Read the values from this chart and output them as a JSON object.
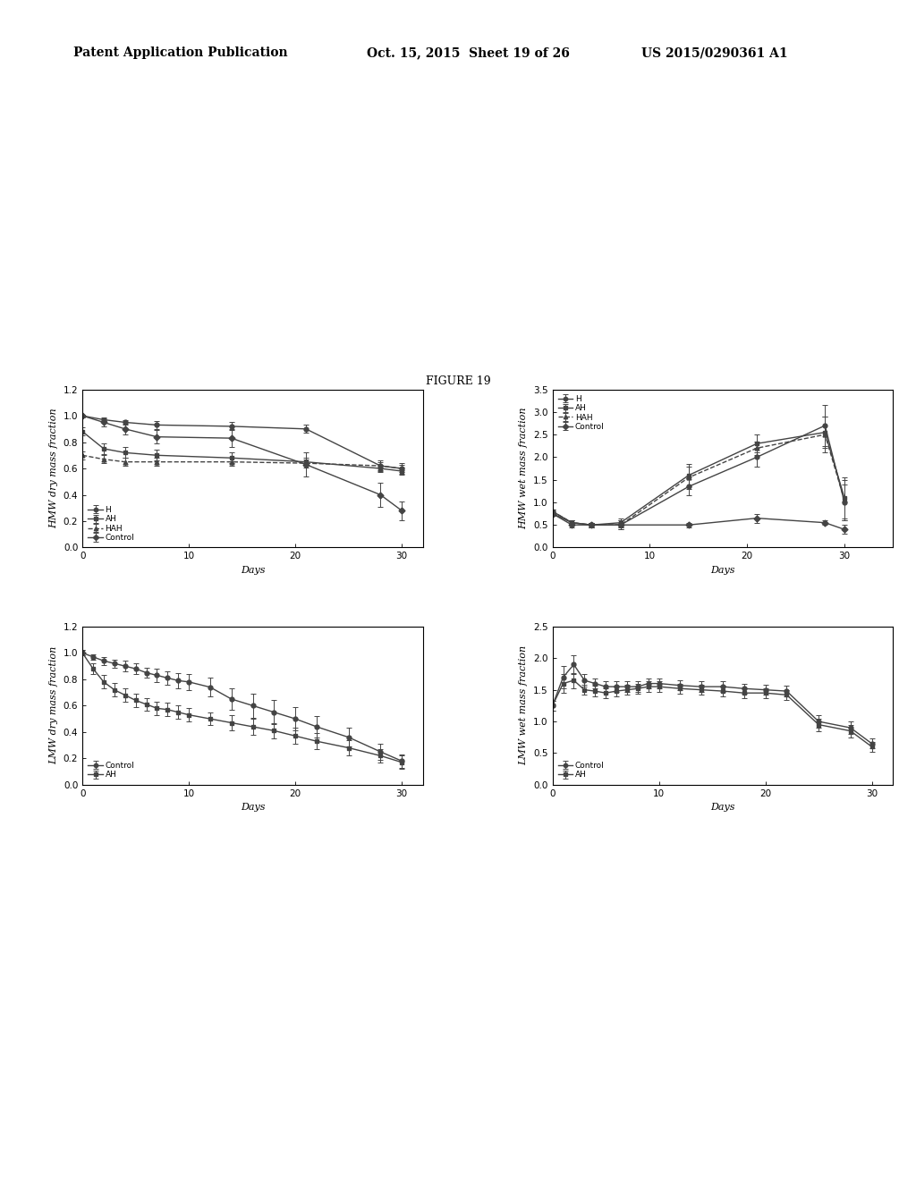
{
  "figure_title": "FIGURE 19",
  "header_line1": "Patent Application Publication",
  "header_line2": "Oct. 15, 2015  Sheet 19 of 26",
  "header_line3": "US 2015/0290361 A1",
  "background_color": "#ffffff",
  "top_left": {
    "ylabel": "HMW dry mass fraction",
    "xlabel": "Days",
    "xlim": [
      0,
      32
    ],
    "ylim": [
      0,
      1.2
    ],
    "yticks": [
      0,
      0.2,
      0.4,
      0.6,
      0.8,
      1.0,
      1.2
    ],
    "xticks": [
      0,
      10,
      20,
      30
    ],
    "legend_loc": "lower left",
    "series": [
      {
        "label": "H",
        "marker": "o",
        "linestyle": "-",
        "x": [
          0,
          2,
          4,
          7,
          14,
          21,
          28,
          30
        ],
        "y": [
          1.0,
          0.97,
          0.95,
          0.93,
          0.92,
          0.9,
          0.62,
          0.6
        ],
        "yerr": [
          0.01,
          0.02,
          0.02,
          0.03,
          0.03,
          0.03,
          0.04,
          0.04
        ]
      },
      {
        "label": "AH",
        "marker": "s",
        "linestyle": "-",
        "x": [
          0,
          2,
          4,
          7,
          14,
          21,
          28,
          30
        ],
        "y": [
          0.88,
          0.75,
          0.72,
          0.7,
          0.68,
          0.65,
          0.6,
          0.58
        ],
        "yerr": [
          0.03,
          0.04,
          0.04,
          0.04,
          0.04,
          0.03,
          0.03,
          0.03
        ]
      },
      {
        "label": "HAH",
        "marker": "^",
        "linestyle": "--",
        "x": [
          0,
          2,
          4,
          7,
          14,
          21,
          28,
          30
        ],
        "y": [
          0.7,
          0.67,
          0.65,
          0.65,
          0.65,
          0.64,
          0.62,
          0.6
        ],
        "yerr": [
          0.03,
          0.03,
          0.03,
          0.03,
          0.03,
          0.03,
          0.03,
          0.03
        ]
      },
      {
        "label": "Control",
        "marker": "D",
        "linestyle": "-",
        "x": [
          0,
          2,
          4,
          7,
          14,
          21,
          28,
          30
        ],
        "y": [
          1.0,
          0.95,
          0.9,
          0.84,
          0.83,
          0.63,
          0.4,
          0.28
        ],
        "yerr": [
          0.01,
          0.03,
          0.04,
          0.05,
          0.07,
          0.09,
          0.09,
          0.07
        ]
      }
    ]
  },
  "top_right": {
    "ylabel": "HMW wet mass fraction",
    "xlabel": "Days",
    "xlim": [
      0,
      35
    ],
    "ylim": [
      0,
      3.5
    ],
    "yticks": [
      0,
      0.5,
      1.0,
      1.5,
      2.0,
      2.5,
      3.0,
      3.5
    ],
    "xticks": [
      0,
      10,
      20,
      30
    ],
    "legend_loc": "upper left",
    "series": [
      {
        "label": "H",
        "marker": "o",
        "linestyle": "-",
        "x": [
          0,
          2,
          4,
          7,
          14,
          21,
          28,
          30
        ],
        "y": [
          0.75,
          0.55,
          0.5,
          0.5,
          1.35,
          2.0,
          2.7,
          1.0
        ],
        "yerr": [
          0.05,
          0.05,
          0.05,
          0.1,
          0.2,
          0.2,
          0.45,
          0.4
        ]
      },
      {
        "label": "AH",
        "marker": "s",
        "linestyle": "-",
        "x": [
          0,
          2,
          4,
          7,
          14,
          21,
          28,
          30
        ],
        "y": [
          0.8,
          0.55,
          0.5,
          0.55,
          1.6,
          2.3,
          2.55,
          1.1
        ],
        "yerr": [
          0.05,
          0.05,
          0.05,
          0.1,
          0.25,
          0.2,
          0.35,
          0.45
        ]
      },
      {
        "label": "HAH",
        "marker": "^",
        "linestyle": "--",
        "x": [
          0,
          2,
          4,
          7,
          14,
          21,
          28,
          30
        ],
        "y": [
          0.8,
          0.55,
          0.5,
          0.5,
          1.55,
          2.2,
          2.5,
          1.05
        ],
        "yerr": [
          0.05,
          0.05,
          0.05,
          0.1,
          0.25,
          0.15,
          0.4,
          0.45
        ]
      },
      {
        "label": "Control",
        "marker": "D",
        "linestyle": "-",
        "x": [
          0,
          2,
          4,
          7,
          14,
          21,
          28,
          30
        ],
        "y": [
          0.75,
          0.5,
          0.5,
          0.5,
          0.5,
          0.65,
          0.55,
          0.4
        ],
        "yerr": [
          0.05,
          0.05,
          0.05,
          0.05,
          0.05,
          0.1,
          0.05,
          0.1
        ]
      }
    ]
  },
  "bottom_left": {
    "ylabel": "LMW dry mass fraction",
    "xlabel": "Days",
    "xlim": [
      0,
      32
    ],
    "ylim": [
      0,
      1.2
    ],
    "yticks": [
      0,
      0.2,
      0.4,
      0.6,
      0.8,
      1.0,
      1.2
    ],
    "xticks": [
      0,
      10,
      20,
      30
    ],
    "legend_loc": "lower left",
    "series": [
      {
        "label": "Control",
        "marker": "o",
        "linestyle": "-",
        "x": [
          0,
          1,
          2,
          3,
          4,
          5,
          6,
          7,
          8,
          9,
          10,
          12,
          14,
          16,
          18,
          20,
          22,
          25,
          28,
          30
        ],
        "y": [
          1.0,
          0.97,
          0.94,
          0.92,
          0.9,
          0.88,
          0.85,
          0.83,
          0.81,
          0.79,
          0.78,
          0.74,
          0.65,
          0.6,
          0.55,
          0.5,
          0.44,
          0.36,
          0.25,
          0.18
        ],
        "yerr": [
          0.02,
          0.02,
          0.03,
          0.03,
          0.04,
          0.04,
          0.04,
          0.05,
          0.05,
          0.06,
          0.06,
          0.07,
          0.08,
          0.09,
          0.09,
          0.09,
          0.08,
          0.07,
          0.06,
          0.05
        ]
      },
      {
        "label": "AH",
        "marker": "s",
        "linestyle": "-",
        "x": [
          0,
          1,
          2,
          3,
          4,
          5,
          6,
          7,
          8,
          9,
          10,
          12,
          14,
          16,
          18,
          20,
          22,
          25,
          28,
          30
        ],
        "y": [
          1.0,
          0.88,
          0.78,
          0.72,
          0.68,
          0.64,
          0.61,
          0.58,
          0.57,
          0.55,
          0.53,
          0.5,
          0.47,
          0.44,
          0.41,
          0.37,
          0.33,
          0.28,
          0.22,
          0.17
        ],
        "yerr": [
          0.02,
          0.04,
          0.05,
          0.05,
          0.05,
          0.05,
          0.05,
          0.05,
          0.05,
          0.05,
          0.05,
          0.05,
          0.06,
          0.06,
          0.06,
          0.06,
          0.06,
          0.06,
          0.05,
          0.05
        ]
      }
    ]
  },
  "bottom_right": {
    "ylabel": "LMW wet mass fraction",
    "xlabel": "Days",
    "xlim": [
      0,
      32
    ],
    "ylim": [
      0,
      2.5
    ],
    "yticks": [
      0,
      0.5,
      1.0,
      1.5,
      2.0,
      2.5
    ],
    "xticks": [
      0,
      10,
      20,
      30
    ],
    "legend_loc": "lower left",
    "series": [
      {
        "label": "Control",
        "marker": "o",
        "linestyle": "-",
        "x": [
          0,
          1,
          2,
          3,
          4,
          5,
          6,
          7,
          8,
          9,
          10,
          12,
          14,
          16,
          18,
          20,
          22,
          25,
          28,
          30
        ],
        "y": [
          1.25,
          1.7,
          1.9,
          1.65,
          1.6,
          1.55,
          1.55,
          1.55,
          1.55,
          1.6,
          1.6,
          1.57,
          1.55,
          1.55,
          1.52,
          1.5,
          1.48,
          1.0,
          0.9,
          0.65
        ],
        "yerr": [
          0.08,
          0.18,
          0.15,
          0.1,
          0.08,
          0.08,
          0.08,
          0.08,
          0.08,
          0.08,
          0.08,
          0.08,
          0.08,
          0.08,
          0.08,
          0.08,
          0.08,
          0.1,
          0.1,
          0.08
        ]
      },
      {
        "label": "AH",
        "marker": "s",
        "linestyle": "-",
        "x": [
          0,
          1,
          2,
          3,
          4,
          5,
          6,
          7,
          8,
          9,
          10,
          12,
          14,
          16,
          18,
          20,
          22,
          25,
          28,
          30
        ],
        "y": [
          1.25,
          1.6,
          1.65,
          1.5,
          1.48,
          1.45,
          1.48,
          1.5,
          1.52,
          1.55,
          1.55,
          1.52,
          1.5,
          1.48,
          1.45,
          1.45,
          1.42,
          0.95,
          0.85,
          0.6
        ],
        "yerr": [
          0.08,
          0.15,
          0.12,
          0.08,
          0.08,
          0.08,
          0.08,
          0.08,
          0.08,
          0.08,
          0.08,
          0.08,
          0.08,
          0.08,
          0.08,
          0.08,
          0.08,
          0.1,
          0.1,
          0.08
        ]
      }
    ]
  },
  "marker_size": 3.5,
  "line_width": 1.0,
  "elinewidth": 0.7,
  "capsize": 2,
  "capthick": 0.7,
  "color": "#444444",
  "font_size": 9,
  "label_font_size": 8,
  "tick_font_size": 7.5
}
